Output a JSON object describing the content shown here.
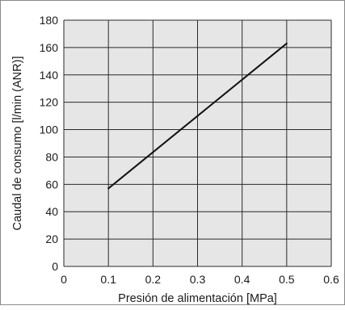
{
  "chart_data": {
    "type": "line",
    "title": "",
    "xlabel": "Presión de alimentación [MPa]",
    "ylabel": "Caudal de consumo [l/min (ANR)]",
    "xlim": [
      0,
      0.6
    ],
    "ylim": [
      0,
      180
    ],
    "x_ticks": [
      0,
      0.1,
      0.2,
      0.3,
      0.4,
      0.5,
      0.6
    ],
    "x_tick_labels": [
      "0",
      "0.1",
      "0.2",
      "0.3",
      "0.4",
      "0.5",
      "0.6"
    ],
    "y_ticks": [
      0,
      20,
      40,
      60,
      80,
      100,
      120,
      140,
      160,
      180
    ],
    "y_tick_labels": [
      "0",
      "20",
      "40",
      "60",
      "80",
      "100",
      "120",
      "140",
      "160",
      "180"
    ],
    "grid": true,
    "legend": "none",
    "series": [
      {
        "x": [
          0.1,
          0.5
        ],
        "y": [
          57,
          163
        ]
      }
    ],
    "colors": {
      "plot_background": "#e6e6e6",
      "grid": "#2a2a2a",
      "line": "#111111",
      "text": "#1a1a1a"
    }
  }
}
